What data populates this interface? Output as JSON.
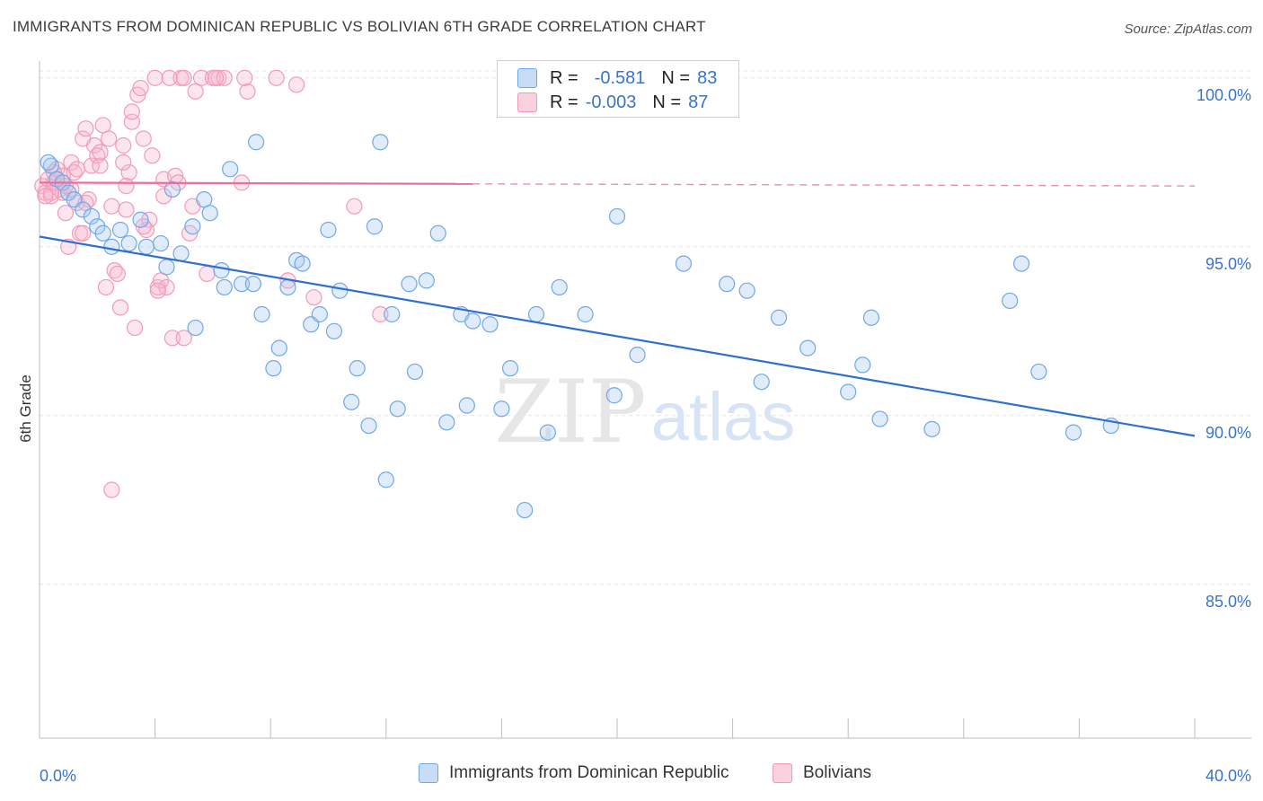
{
  "title": "IMMIGRANTS FROM DOMINICAN REPUBLIC VS BOLIVIAN 6TH GRADE CORRELATION CHART",
  "source": "Source: ZipAtlas.com",
  "watermark": {
    "zip": "ZIP",
    "atlas": "atlas"
  },
  "legend": {
    "rows": [
      {
        "r_label": "R =",
        "r_value": "-0.581",
        "n_label": "N =",
        "n_value": "83",
        "color": "#6fa8e8"
      },
      {
        "r_label": "R =",
        "r_value": "-0.003",
        "n_label": "N =",
        "n_value": "87",
        "color": "#f29ab8"
      }
    ]
  },
  "bottom_legend": [
    "Immigrants from Dominican Republic",
    "Bolivians"
  ],
  "colors": {
    "blue": "#6fa8e8",
    "blue_line": "#2f6fd0",
    "pink": "#f29ab8",
    "pink_line": "#e8709a",
    "axis_text": "#3a74c9"
  },
  "chart_data": {
    "type": "scatter",
    "xlabel": "",
    "ylabel": "6th Grade",
    "xlim": [
      0,
      40
    ],
    "ylim": [
      80.5,
      100.5
    ],
    "x_tick_labels": [
      "0.0%",
      "40.0%"
    ],
    "y_ticks": [
      85,
      90,
      95,
      100
    ],
    "y_tick_labels": [
      "85.0%",
      "90.0%",
      "95.0%",
      "100.0%"
    ],
    "grid": true,
    "series": [
      {
        "name": "Immigrants from Dominican Republic",
        "trend": {
          "x": [
            0,
            40
          ],
          "y": [
            95.3,
            89.4
          ]
        },
        "points": [
          [
            0.4,
            97.4
          ],
          [
            0.6,
            97.0
          ],
          [
            0.8,
            96.9
          ],
          [
            1.0,
            96.6
          ],
          [
            1.2,
            96.4
          ],
          [
            1.5,
            96.1
          ],
          [
            1.8,
            95.9
          ],
          [
            2.0,
            95.6
          ],
          [
            2.2,
            95.4
          ],
          [
            2.5,
            95.0
          ],
          [
            2.8,
            95.5
          ],
          [
            3.1,
            95.1
          ],
          [
            3.5,
            95.8
          ],
          [
            3.7,
            95.0
          ],
          [
            4.2,
            95.1
          ],
          [
            4.4,
            94.4
          ],
          [
            4.6,
            96.7
          ],
          [
            4.9,
            94.8
          ],
          [
            5.3,
            95.6
          ],
          [
            5.4,
            92.6
          ],
          [
            5.7,
            96.4
          ],
          [
            5.9,
            96.0
          ],
          [
            6.3,
            94.3
          ],
          [
            6.4,
            93.8
          ],
          [
            6.6,
            97.3
          ],
          [
            7.0,
            93.9
          ],
          [
            7.4,
            93.9
          ],
          [
            7.5,
            98.1
          ],
          [
            7.7,
            93.0
          ],
          [
            8.1,
            91.4
          ],
          [
            8.3,
            92.0
          ],
          [
            8.6,
            93.8
          ],
          [
            8.9,
            94.6
          ],
          [
            9.1,
            94.5
          ],
          [
            9.4,
            92.7
          ],
          [
            9.7,
            93.0
          ],
          [
            10.0,
            95.5
          ],
          [
            10.2,
            92.5
          ],
          [
            10.4,
            93.7
          ],
          [
            10.8,
            90.4
          ],
          [
            11.0,
            91.4
          ],
          [
            11.4,
            89.7
          ],
          [
            11.6,
            95.6
          ],
          [
            11.8,
            98.1
          ],
          [
            12.0,
            88.1
          ],
          [
            12.2,
            93.0
          ],
          [
            12.4,
            90.2
          ],
          [
            12.8,
            93.9
          ],
          [
            13.0,
            91.3
          ],
          [
            13.4,
            94.0
          ],
          [
            13.8,
            95.4
          ],
          [
            14.1,
            89.8
          ],
          [
            14.6,
            93.0
          ],
          [
            14.8,
            90.3
          ],
          [
            15.0,
            92.8
          ],
          [
            15.6,
            92.7
          ],
          [
            16.0,
            90.2
          ],
          [
            16.3,
            91.4
          ],
          [
            16.8,
            87.2
          ],
          [
            17.2,
            93.0
          ],
          [
            17.6,
            89.5
          ],
          [
            18.0,
            93.8
          ],
          [
            18.9,
            93.0
          ],
          [
            19.9,
            90.6
          ],
          [
            20.0,
            95.9
          ],
          [
            20.7,
            91.8
          ],
          [
            22.3,
            94.5
          ],
          [
            23.8,
            93.9
          ],
          [
            24.5,
            93.7
          ],
          [
            25.0,
            91.0
          ],
          [
            25.6,
            92.9
          ],
          [
            26.6,
            92.0
          ],
          [
            28.0,
            90.7
          ],
          [
            28.5,
            91.5
          ],
          [
            28.8,
            92.9
          ],
          [
            29.1,
            89.9
          ],
          [
            30.9,
            89.6
          ],
          [
            33.6,
            93.4
          ],
          [
            34.0,
            94.5
          ],
          [
            34.6,
            91.3
          ],
          [
            35.8,
            89.5
          ],
          [
            37.1,
            89.7
          ],
          [
            0.3,
            97.5
          ]
        ]
      },
      {
        "name": "Bolivians",
        "trend": {
          "x": [
            0,
            40
          ],
          "y": [
            96.9,
            96.8
          ]
        },
        "trend_solid_until_x": 15.0,
        "points": [
          [
            0.1,
            96.8
          ],
          [
            0.2,
            96.6
          ],
          [
            0.3,
            97.0
          ],
          [
            0.4,
            96.5
          ],
          [
            0.5,
            96.9
          ],
          [
            0.6,
            97.3
          ],
          [
            0.7,
            96.7
          ],
          [
            0.8,
            97.1
          ],
          [
            0.9,
            96.0
          ],
          [
            1.0,
            95.0
          ],
          [
            1.1,
            97.5
          ],
          [
            1.2,
            97.2
          ],
          [
            1.3,
            96.3
          ],
          [
            1.4,
            95.4
          ],
          [
            1.5,
            98.2
          ],
          [
            1.6,
            98.5
          ],
          [
            1.7,
            96.4
          ],
          [
            1.8,
            97.4
          ],
          [
            1.9,
            98.0
          ],
          [
            2.0,
            97.7
          ],
          [
            2.1,
            97.4
          ],
          [
            2.2,
            98.6
          ],
          [
            2.3,
            93.8
          ],
          [
            2.4,
            98.2
          ],
          [
            2.5,
            96.2
          ],
          [
            2.6,
            94.3
          ],
          [
            2.7,
            94.2
          ],
          [
            2.8,
            93.2
          ],
          [
            2.9,
            98.0
          ],
          [
            3.0,
            96.1
          ],
          [
            3.1,
            97.2
          ],
          [
            3.2,
            98.7
          ],
          [
            3.3,
            92.6
          ],
          [
            3.4,
            99.5
          ],
          [
            3.5,
            99.7
          ],
          [
            3.6,
            98.2
          ],
          [
            3.7,
            95.5
          ],
          [
            3.8,
            95.8
          ],
          [
            3.9,
            97.7
          ],
          [
            4.0,
            100.0
          ],
          [
            4.1,
            93.8
          ],
          [
            4.2,
            94.0
          ],
          [
            4.3,
            97.0
          ],
          [
            4.4,
            93.8
          ],
          [
            4.5,
            100.0
          ],
          [
            4.6,
            92.3
          ],
          [
            4.7,
            97.1
          ],
          [
            4.8,
            96.9
          ],
          [
            4.9,
            100.0
          ],
          [
            5.0,
            92.3
          ],
          [
            5.2,
            95.4
          ],
          [
            5.4,
            99.6
          ],
          [
            5.6,
            100.0
          ],
          [
            5.8,
            94.2
          ],
          [
            6.0,
            100.0
          ],
          [
            6.2,
            100.0
          ],
          [
            6.4,
            100.0
          ],
          [
            7.0,
            96.9
          ],
          [
            7.2,
            99.6
          ],
          [
            8.2,
            100.0
          ],
          [
            8.6,
            94.0
          ],
          [
            8.9,
            99.8
          ],
          [
            9.5,
            93.5
          ],
          [
            10.9,
            96.2
          ],
          [
            11.8,
            93.0
          ],
          [
            4.1,
            93.7
          ],
          [
            2.9,
            97.5
          ],
          [
            1.3,
            97.3
          ],
          [
            0.6,
            97.0
          ],
          [
            0.8,
            96.6
          ],
          [
            2.5,
            87.8
          ],
          [
            3.6,
            95.6
          ],
          [
            4.3,
            96.5
          ],
          [
            5.3,
            96.2
          ],
          [
            1.5,
            95.4
          ],
          [
            2.1,
            97.8
          ],
          [
            3.0,
            96.8
          ],
          [
            1.1,
            96.7
          ],
          [
            0.4,
            96.6
          ],
          [
            0.2,
            96.5
          ],
          [
            0.9,
            96.8
          ],
          [
            1.6,
            96.3
          ],
          [
            5.0,
            100.0
          ],
          [
            7.1,
            100.0
          ],
          [
            3.2,
            99.0
          ],
          [
            0.5,
            97.2
          ],
          [
            6.1,
            100.0
          ]
        ]
      }
    ]
  }
}
